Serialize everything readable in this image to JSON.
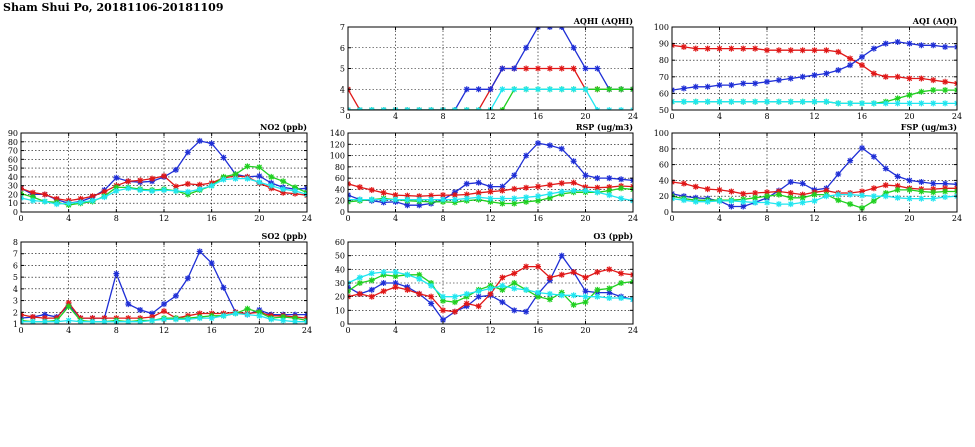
{
  "page_title": "Sham Shui Po, 20181106-20181109",
  "colors": {
    "blue": "#1f2fd6",
    "red": "#e01818",
    "green": "#20d020",
    "cyan": "#20e6f0"
  },
  "chart_data": [
    {
      "id": "aqhi",
      "type": "line",
      "title": "AQHI (AQHI)",
      "xlim": [
        0,
        24
      ],
      "xticks": [
        0,
        4,
        8,
        12,
        16,
        20,
        24
      ],
      "ylim": [
        3,
        7
      ],
      "yticks": [
        3,
        4,
        5,
        6,
        7
      ],
      "grid": true,
      "x": [
        0,
        1,
        2,
        3,
        4,
        5,
        6,
        7,
        8,
        9,
        10,
        11,
        12,
        13,
        14,
        15,
        16,
        17,
        18,
        19,
        20,
        21,
        22,
        23,
        24
      ],
      "series": [
        {
          "color": "red",
          "values": [
            4,
            3,
            3,
            3,
            3,
            3,
            3,
            3,
            3,
            3,
            3,
            3,
            4,
            5,
            5,
            5,
            5,
            5,
            5,
            5,
            4,
            4,
            4,
            4,
            4
          ]
        },
        {
          "color": "blue",
          "values": [
            3,
            3,
            3,
            3,
            3,
            3,
            3,
            3,
            3,
            3,
            4,
            4,
            4,
            5,
            5,
            6,
            7,
            7,
            7,
            6,
            5,
            5,
            4,
            4,
            4
          ]
        },
        {
          "color": "green",
          "values": [
            3,
            3,
            3,
            3,
            3,
            3,
            3,
            3,
            3,
            3,
            3,
            3,
            3,
            3,
            4,
            4,
            4,
            4,
            4,
            4,
            4,
            4,
            4,
            4,
            4
          ]
        },
        {
          "color": "cyan",
          "values": [
            3,
            3,
            3,
            3,
            3,
            3,
            3,
            3,
            3,
            3,
            3,
            3,
            3,
            4,
            4,
            4,
            4,
            4,
            4,
            4,
            4,
            3,
            3,
            3,
            3
          ]
        }
      ]
    },
    {
      "id": "aqi",
      "type": "line",
      "title": "AQI (AQI)",
      "xlim": [
        0,
        24
      ],
      "xticks": [
        0,
        4,
        8,
        12,
        16,
        20,
        24
      ],
      "ylim": [
        50,
        100
      ],
      "yticks": [
        50,
        60,
        70,
        80,
        90,
        100
      ],
      "grid": true,
      "x": [
        0,
        1,
        2,
        3,
        4,
        5,
        6,
        7,
        8,
        9,
        10,
        11,
        12,
        13,
        14,
        15,
        16,
        17,
        18,
        19,
        20,
        21,
        22,
        23,
        24
      ],
      "series": [
        {
          "color": "red",
          "values": [
            89,
            88,
            87,
            87,
            87,
            87,
            87,
            87,
            86,
            86,
            86,
            86,
            86,
            86,
            85,
            81,
            77,
            72,
            70,
            70,
            69,
            69,
            68,
            67,
            66
          ]
        },
        {
          "color": "blue",
          "values": [
            62,
            63,
            64,
            64,
            65,
            65,
            66,
            66,
            67,
            68,
            69,
            70,
            71,
            72,
            74,
            77,
            82,
            87,
            90,
            91,
            90,
            89,
            89,
            88,
            88
          ]
        },
        {
          "color": "green",
          "values": [
            55,
            55,
            55,
            55,
            55,
            55,
            55,
            55,
            55,
            55,
            55,
            55,
            55,
            55,
            54,
            54,
            54,
            54,
            55,
            57,
            59,
            61,
            62,
            62,
            62
          ]
        },
        {
          "color": "cyan",
          "values": [
            55,
            55,
            55,
            55,
            55,
            55,
            55,
            55,
            55,
            55,
            55,
            55,
            55,
            55,
            54,
            54,
            54,
            54,
            54,
            54,
            54,
            54,
            54,
            54,
            54
          ]
        }
      ]
    },
    {
      "id": "no2",
      "type": "line",
      "title": "NO2 (ppb)",
      "xlim": [
        0,
        24
      ],
      "xticks": [
        0,
        4,
        8,
        12,
        16,
        20,
        24
      ],
      "ylim": [
        0,
        90
      ],
      "yticks": [
        0,
        10,
        20,
        30,
        40,
        50,
        60,
        70,
        80,
        90
      ],
      "grid": true,
      "x": [
        0,
        1,
        2,
        3,
        4,
        5,
        6,
        7,
        8,
        9,
        10,
        11,
        12,
        13,
        14,
        15,
        16,
        17,
        18,
        19,
        20,
        21,
        22,
        23,
        24
      ],
      "series": [
        {
          "color": "blue",
          "values": [
            27,
            20,
            20,
            14,
            10,
            12,
            17,
            25,
            39,
            35,
            34,
            35,
            40,
            48,
            68,
            81,
            78,
            62,
            43,
            40,
            41,
            33,
            28,
            26,
            27
          ]
        },
        {
          "color": "red",
          "values": [
            27,
            22,
            20,
            15,
            13,
            15,
            18,
            23,
            30,
            35,
            36,
            38,
            41,
            29,
            32,
            31,
            33,
            39,
            41,
            40,
            33,
            27,
            22,
            21,
            19
          ]
        },
        {
          "color": "green",
          "values": [
            21,
            17,
            12,
            11,
            8,
            10,
            12,
            18,
            28,
            28,
            26,
            25,
            26,
            24,
            20,
            25,
            30,
            40,
            43,
            52,
            51,
            40,
            35,
            28,
            22
          ]
        },
        {
          "color": "cyan",
          "values": [
            16,
            13,
            12,
            9,
            10,
            11,
            13,
            17,
            24,
            27,
            25,
            24,
            25,
            24,
            23,
            26,
            30,
            37,
            38,
            38,
            34,
            30,
            26,
            24,
            20
          ]
        }
      ]
    },
    {
      "id": "rsp",
      "type": "line",
      "title": "RSP (ug/m3)",
      "xlim": [
        0,
        24
      ],
      "xticks": [
        0,
        4,
        8,
        12,
        16,
        20,
        24
      ],
      "ylim": [
        0,
        140
      ],
      "yticks": [
        0,
        20,
        40,
        60,
        80,
        100,
        120,
        140
      ],
      "grid": true,
      "x": [
        0,
        1,
        2,
        3,
        4,
        5,
        6,
        7,
        8,
        9,
        10,
        11,
        12,
        13,
        14,
        15,
        16,
        17,
        18,
        19,
        20,
        21,
        22,
        23,
        24
      ],
      "series": [
        {
          "color": "blue",
          "values": [
            30,
            22,
            20,
            17,
            18,
            12,
            12,
            15,
            22,
            35,
            50,
            52,
            45,
            45,
            65,
            100,
            122,
            118,
            112,
            90,
            65,
            60,
            60,
            58,
            56
          ]
        },
        {
          "color": "red",
          "values": [
            50,
            44,
            39,
            34,
            30,
            29,
            28,
            29,
            30,
            30,
            31,
            34,
            36,
            38,
            41,
            43,
            45,
            48,
            51,
            52,
            44,
            43,
            44,
            46,
            45
          ]
        },
        {
          "color": "green",
          "values": [
            18,
            20,
            22,
            24,
            22,
            20,
            19,
            18,
            18,
            17,
            20,
            22,
            18,
            15,
            15,
            18,
            20,
            25,
            32,
            35,
            35,
            35,
            38,
            42,
            40
          ]
        },
        {
          "color": "cyan",
          "values": [
            22,
            22,
            22,
            22,
            22,
            22,
            22,
            22,
            22,
            22,
            24,
            26,
            24,
            24,
            24,
            26,
            28,
            32,
            36,
            38,
            38,
            35,
            30,
            24,
            20
          ]
        }
      ]
    },
    {
      "id": "fsp",
      "type": "line",
      "title": "FSP (ug/m3)",
      "xlim": [
        0,
        24
      ],
      "xticks": [
        0,
        4,
        8,
        12,
        16,
        20,
        24
      ],
      "ylim": [
        0,
        100
      ],
      "yticks": [
        0,
        20,
        40,
        60,
        80,
        100
      ],
      "grid": true,
      "x": [
        0,
        1,
        2,
        3,
        4,
        5,
        6,
        7,
        8,
        9,
        10,
        11,
        12,
        13,
        14,
        15,
        16,
        17,
        18,
        19,
        20,
        21,
        22,
        23,
        24
      ],
      "series": [
        {
          "color": "blue",
          "values": [
            23,
            20,
            18,
            17,
            14,
            7,
            7,
            12,
            18,
            27,
            38,
            36,
            28,
            30,
            48,
            65,
            81,
            70,
            55,
            45,
            40,
            38,
            36,
            36,
            35
          ]
        },
        {
          "color": "red",
          "values": [
            38,
            36,
            32,
            29,
            28,
            26,
            23,
            24,
            25,
            26,
            24,
            22,
            25,
            27,
            24,
            24,
            26,
            30,
            34,
            33,
            30,
            29,
            29,
            30,
            30
          ]
        },
        {
          "color": "green",
          "values": [
            20,
            17,
            15,
            15,
            15,
            15,
            16,
            18,
            20,
            22,
            18,
            18,
            22,
            22,
            15,
            10,
            5,
            14,
            24,
            28,
            28,
            26,
            25,
            26,
            26
          ]
        },
        {
          "color": "cyan",
          "values": [
            17,
            15,
            13,
            13,
            14,
            14,
            13,
            12,
            12,
            10,
            10,
            12,
            14,
            20,
            22,
            22,
            21,
            20,
            20,
            18,
            17,
            17,
            17,
            19,
            20
          ]
        }
      ]
    },
    {
      "id": "so2",
      "type": "line",
      "title": "SO2 (ppb)",
      "xlim": [
        0,
        24
      ],
      "xticks": [
        0,
        4,
        8,
        12,
        16,
        20,
        24
      ],
      "ylim": [
        1,
        8
      ],
      "yticks": [
        1,
        2,
        3,
        4,
        5,
        6,
        7,
        8
      ],
      "grid": true,
      "x": [
        0,
        1,
        2,
        3,
        4,
        5,
        6,
        7,
        8,
        9,
        10,
        11,
        12,
        13,
        14,
        15,
        16,
        17,
        18,
        19,
        20,
        21,
        22,
        23,
        24
      ],
      "series": [
        {
          "color": "blue",
          "values": [
            1.5,
            1.6,
            1.8,
            1.6,
            2.6,
            1.5,
            1.5,
            1.5,
            5.3,
            2.7,
            2.2,
            1.9,
            2.7,
            3.4,
            4.9,
            7.2,
            6.2,
            4.1,
            2.0,
            1.8,
            2.2,
            1.8,
            1.8,
            1.8,
            1.8
          ]
        },
        {
          "color": "red",
          "values": [
            1.8,
            1.6,
            1.5,
            1.5,
            2.8,
            1.5,
            1.5,
            1.5,
            1.5,
            1.5,
            1.5,
            1.6,
            2.1,
            1.5,
            1.7,
            1.9,
            1.9,
            1.9,
            2.0,
            1.9,
            2.0,
            1.7,
            1.7,
            1.6,
            1.5
          ]
        },
        {
          "color": "green",
          "values": [
            1.3,
            1.2,
            1.2,
            1.3,
            2.5,
            1.3,
            1.2,
            1.2,
            1.3,
            1.2,
            1.3,
            1.3,
            1.5,
            1.5,
            1.5,
            1.6,
            1.7,
            1.7,
            1.9,
            2.3,
            2.0,
            1.5,
            1.6,
            1.5,
            1.3
          ]
        },
        {
          "color": "cyan",
          "values": [
            1.2,
            1.2,
            1.2,
            1.2,
            1.3,
            1.2,
            1.2,
            1.2,
            1.2,
            1.2,
            1.2,
            1.3,
            1.4,
            1.4,
            1.4,
            1.5,
            1.5,
            1.7,
            1.9,
            1.8,
            1.7,
            1.4,
            1.3,
            1.2,
            1.2
          ]
        }
      ]
    },
    {
      "id": "o3",
      "type": "line",
      "title": "O3 (ppb)",
      "xlim": [
        0,
        24
      ],
      "xticks": [
        0,
        4,
        8,
        12,
        16,
        20,
        24
      ],
      "ylim": [
        0,
        60
      ],
      "yticks": [
        0,
        10,
        20,
        30,
        40,
        50,
        60
      ],
      "grid": true,
      "x": [
        0,
        1,
        2,
        3,
        4,
        5,
        6,
        7,
        8,
        9,
        10,
        11,
        12,
        13,
        14,
        15,
        16,
        17,
        18,
        19,
        20,
        21,
        22,
        23,
        24
      ],
      "series": [
        {
          "color": "blue",
          "values": [
            27,
            22,
            25,
            30,
            30,
            27,
            22,
            15,
            3,
            9,
            13,
            20,
            21,
            16,
            10,
            9,
            22,
            32,
            50,
            38,
            24,
            23,
            23,
            20,
            18
          ]
        },
        {
          "color": "red",
          "values": [
            20,
            22,
            20,
            24,
            27,
            25,
            22,
            20,
            10,
            9,
            15,
            13,
            22,
            34,
            37,
            42,
            42,
            34,
            36,
            38,
            34,
            38,
            40,
            37,
            36
          ]
        },
        {
          "color": "green",
          "values": [
            24,
            30,
            32,
            36,
            35,
            36,
            36,
            30,
            17,
            16,
            20,
            25,
            28,
            25,
            30,
            25,
            20,
            18,
            23,
            14,
            16,
            25,
            26,
            30,
            31
          ]
        },
        {
          "color": "cyan",
          "values": [
            30,
            34,
            37,
            38,
            38,
            36,
            33,
            28,
            20,
            20,
            22,
            24,
            26,
            28,
            26,
            25,
            23,
            22,
            21,
            21,
            20,
            20,
            19,
            19,
            18
          ]
        }
      ]
    }
  ]
}
